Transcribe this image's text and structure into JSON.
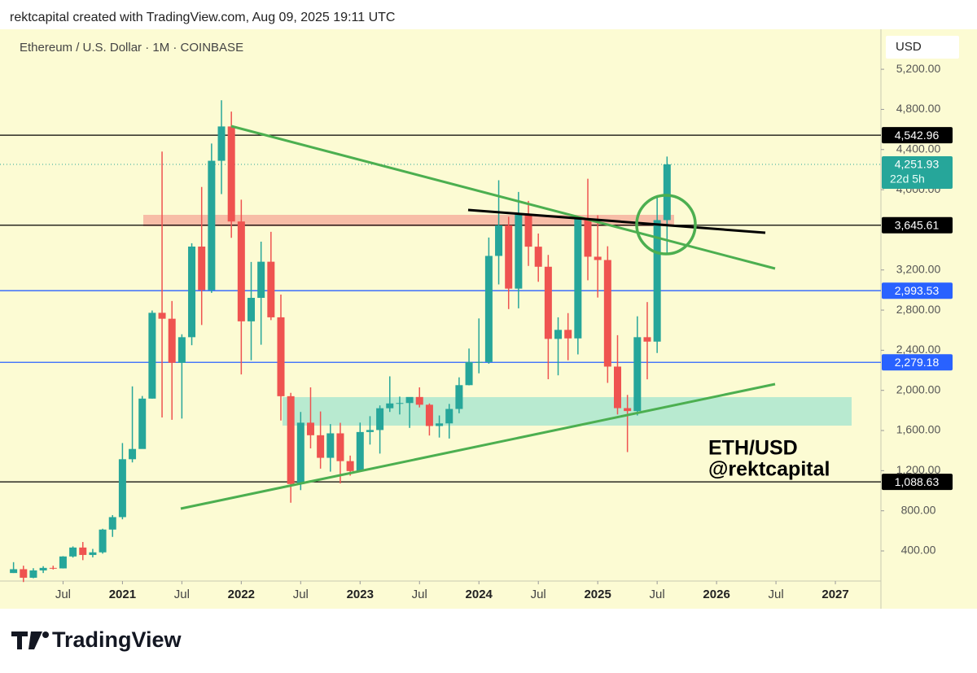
{
  "header": "rektcapital created with TradingView.com, Aug 09, 2025 19:11 UTC",
  "brand": "TradingView",
  "chart_data": {
    "type": "candlestick",
    "title": "Ethereum / U.S. Dollar · 1M · COINBASE",
    "currency": "USD",
    "annotations": [
      "ETH/USD",
      "@rektcapital"
    ],
    "x": [
      "2020-02",
      "2020-03",
      "2020-04",
      "2020-05",
      "2020-06",
      "2020-07",
      "2020-08",
      "2020-09",
      "2020-10",
      "2020-11",
      "2020-12",
      "2021-01",
      "2021-02",
      "2021-03",
      "2021-04",
      "2021-05",
      "2021-06",
      "2021-07",
      "2021-08",
      "2021-09",
      "2021-10",
      "2021-11",
      "2021-12",
      "2022-01",
      "2022-02",
      "2022-03",
      "2022-04",
      "2022-05",
      "2022-06",
      "2022-07",
      "2022-08",
      "2022-09",
      "2022-10",
      "2022-11",
      "2022-12",
      "2023-01",
      "2023-02",
      "2023-03",
      "2023-04",
      "2023-05",
      "2023-06",
      "2023-07",
      "2023-08",
      "2023-09",
      "2023-10",
      "2023-11",
      "2023-12",
      "2024-01",
      "2024-02",
      "2024-03",
      "2024-04",
      "2024-05",
      "2024-06",
      "2024-07",
      "2024-08",
      "2024-09",
      "2024-10",
      "2024-11",
      "2024-12",
      "2025-01",
      "2025-02",
      "2025-03",
      "2025-04",
      "2025-05",
      "2025-06",
      "2025-07",
      "2025-08"
    ],
    "open": [
      180,
      218,
      133,
      206,
      231,
      226,
      345,
      434,
      360,
      386,
      613,
      737,
      1314,
      1416,
      1918,
      2773,
      2714,
      2275,
      2530,
      3433,
      3000,
      4288,
      4630,
      3683,
      2688,
      2922,
      3282,
      2728,
      1942,
      1067,
      1678,
      1553,
      1328,
      1572,
      1295,
      1196,
      1585,
      1605,
      1822,
      1870,
      1874,
      1934,
      1857,
      1645,
      1671,
      1815,
      2052,
      2282,
      2283,
      3340,
      3645,
      3014,
      3761,
      3432,
      3232,
      2513,
      2603,
      2518,
      3705,
      3332,
      3299,
      2237,
      1823,
      1794,
      2530,
      2486,
      3697
    ],
    "high": [
      288,
      253,
      228,
      248,
      253,
      348,
      445,
      489,
      420,
      621,
      757,
      1475,
      2040,
      1944,
      2796,
      4380,
      2891,
      2559,
      3466,
      4027,
      4460,
      4891,
      4778,
      3900,
      3280,
      3482,
      3580,
      2955,
      1975,
      1785,
      2030,
      1790,
      1664,
      1677,
      1350,
      1679,
      1743,
      1850,
      2140,
      1938,
      1930,
      2030,
      1870,
      1750,
      1865,
      2130,
      2417,
      2717,
      3523,
      4094,
      3730,
      3977,
      3888,
      3563,
      3350,
      2728,
      2770,
      3682,
      4109,
      3745,
      3436,
      2550,
      1955,
      2738,
      2880,
      3940,
      4330
    ],
    "low": [
      180,
      90,
      128,
      180,
      215,
      225,
      334,
      308,
      336,
      373,
      540,
      715,
      1282,
      1430,
      1918,
      1730,
      1707,
      1719,
      2450,
      2651,
      2972,
      3956,
      3520,
      2159,
      2300,
      2455,
      2700,
      1700,
      881,
      1006,
      1422,
      1220,
      1190,
      1073,
      1150,
      1190,
      1460,
      1370,
      1785,
      1760,
      1626,
      1830,
      1550,
      1530,
      1520,
      1772,
      2050,
      2170,
      2265,
      3056,
      2810,
      2818,
      3240,
      3082,
      2111,
      2150,
      2300,
      2358,
      3097,
      2925,
      2075,
      1760,
      1385,
      1750,
      2110,
      2373,
      3350
    ],
    "close": [
      218,
      133,
      206,
      231,
      226,
      345,
      434,
      360,
      386,
      613,
      737,
      1314,
      1416,
      1918,
      2773,
      2714,
      2275,
      2530,
      3433,
      3000,
      4288,
      4630,
      3683,
      2688,
      2922,
      3282,
      2728,
      1942,
      1067,
      1678,
      1553,
      1328,
      1572,
      1295,
      1196,
      1585,
      1605,
      1822,
      1870,
      1874,
      1934,
      1857,
      1645,
      1671,
      1815,
      2052,
      2282,
      2283,
      3340,
      3645,
      3014,
      3761,
      3432,
      3232,
      2513,
      2603,
      2518,
      3705,
      3332,
      3299,
      2237,
      1823,
      1794,
      2530,
      2486,
      3697,
      4252
    ],
    "up_color": "#26a69a",
    "down_color": "#ef5350",
    "xlim": [
      "2019-12-20",
      "2027-05-19"
    ],
    "xticks": [
      {
        "value": "2020-07",
        "label": "Jul"
      },
      {
        "value": "2021-01",
        "label": "2021"
      },
      {
        "value": "2021-07",
        "label": "Jul"
      },
      {
        "value": "2022-01",
        "label": "2022"
      },
      {
        "value": "2022-07",
        "label": "Jul"
      },
      {
        "value": "2023-01",
        "label": "2023"
      },
      {
        "value": "2023-07",
        "label": "Jul"
      },
      {
        "value": "2024-01",
        "label": "2024"
      },
      {
        "value": "2024-07",
        "label": "Jul"
      },
      {
        "value": "2025-01",
        "label": "2025"
      },
      {
        "value": "2025-07",
        "label": "Jul"
      },
      {
        "value": "2026-01",
        "label": "2026"
      },
      {
        "value": "2026-07",
        "label": "Jul"
      },
      {
        "value": "2027-01",
        "label": "2027"
      }
    ],
    "ylim": [
      100,
      5582
    ],
    "yticks": [
      {
        "value": 400,
        "label": "400.00"
      },
      {
        "value": 800,
        "label": "800.00"
      },
      {
        "value": 1200,
        "label": "1,200.00"
      },
      {
        "value": 1600,
        "label": "1,600.00"
      },
      {
        "value": 2000,
        "label": "2,000.00"
      },
      {
        "value": 2400,
        "label": "2,400.00"
      },
      {
        "value": 2800,
        "label": "2,800.00"
      },
      {
        "value": 3200,
        "label": "3,200.00"
      },
      {
        "value": 4000,
        "label": "4,000.00"
      },
      {
        "value": 4400,
        "label": "4,400.00"
      },
      {
        "value": 4800,
        "label": "4,800.00"
      },
      {
        "value": 5200,
        "label": "5,200.00"
      }
    ],
    "price_lines": [
      {
        "value": 4542.96,
        "label": "4,542.96",
        "color": "#000000"
      },
      {
        "value": 3645.61,
        "label": "3,645.61",
        "color": "#000000"
      },
      {
        "value": 2993.53,
        "label": "2,993.53",
        "color": "#2962ff"
      },
      {
        "value": 2279.18,
        "label": "2,279.18",
        "color": "#2962ff"
      },
      {
        "value": 1088.63,
        "label": "1,088.63",
        "color": "#000000"
      }
    ],
    "last_price": {
      "value": 4251.93,
      "label": "4,251.93",
      "countdown": "22d 5h",
      "color": "#26a69a"
    }
  }
}
